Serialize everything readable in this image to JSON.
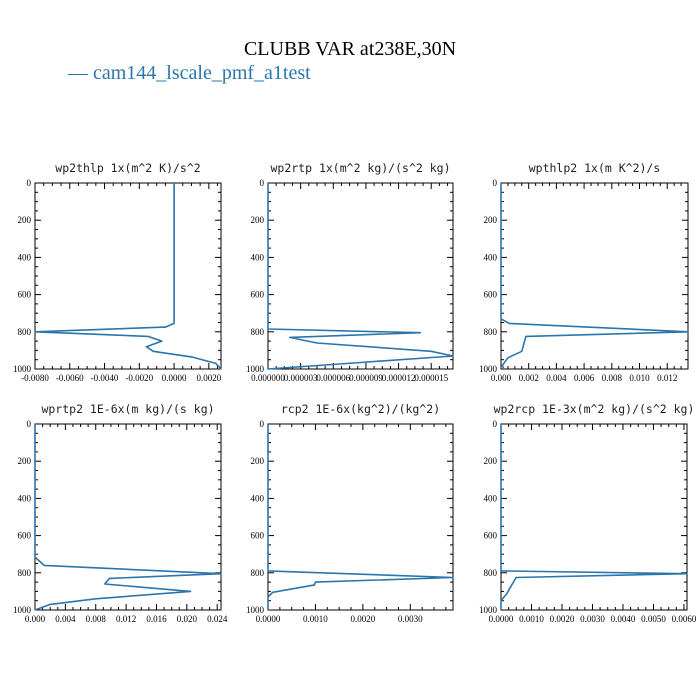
{
  "figure": {
    "title": "CLUBB VAR at238E,30N",
    "legend_label": "— cam144_lscale_pmf_a1test",
    "line_color": "#2b75ad"
  },
  "chart_data": [
    {
      "type": "line",
      "title": "wp2thlp   1x(m^2 K)/s^2",
      "xlim": [
        -0.008,
        0.0027
      ],
      "ylim": [
        1000,
        0
      ],
      "xticks": [
        -0.008,
        -0.006,
        -0.004,
        -0.002,
        0.0,
        0.002
      ],
      "xtick_labels": [
        "-0.0080",
        "-0.0060",
        "-0.0040",
        "-0.0020",
        "0.0000",
        "0.0020"
      ],
      "yticks": [
        0,
        200,
        400,
        600,
        800,
        1000
      ],
      "series": [
        {
          "x": [
            0.0,
            0.0,
            0.0,
            -0.0005,
            -0.008,
            -0.0015,
            -0.0007,
            -0.0016,
            -0.0012,
            0.001,
            0.0024,
            0.0027
          ],
          "y": [
            0,
            200,
            755,
            775,
            800,
            825,
            850,
            880,
            905,
            935,
            970,
            1000
          ]
        }
      ]
    },
    {
      "type": "line",
      "title": "wp2rtp   1x(m^2 kg)/(s^2 kg)",
      "xlim": [
        0.0,
        1.7e-05
      ],
      "ylim": [
        1000,
        0
      ],
      "xticks": [
        0.0,
        3e-06,
        6e-06,
        9e-06,
        1.2e-05,
        1.5e-05
      ],
      "xtick_labels": [
        "0.000000",
        "0.000003",
        "0.000006",
        "0.000009",
        "0.000012",
        "0.000015"
      ],
      "yticks": [
        0,
        200,
        400,
        600,
        800,
        1000
      ],
      "series": [
        {
          "x": [
            0.0,
            0.0,
            0.0,
            0.0,
            1.4e-05,
            2e-06,
            4.5e-06,
            1.5e-05,
            1.7e-05,
            8.5e-06,
            0.0
          ],
          "y": [
            0,
            200,
            760,
            785,
            805,
            830,
            860,
            905,
            930,
            965,
            1000
          ]
        }
      ]
    },
    {
      "type": "line",
      "title": "wpthlp2   1x(m K^2)/s",
      "xlim": [
        0.0,
        0.0135
      ],
      "ylim": [
        1000,
        0
      ],
      "xticks": [
        0.0,
        0.002,
        0.004,
        0.006,
        0.008,
        0.01,
        0.012
      ],
      "xtick_labels": [
        "0.000",
        "0.002",
        "0.004",
        "0.006",
        "0.008",
        "0.010",
        "0.012"
      ],
      "yticks": [
        0,
        200,
        400,
        600,
        800,
        1000
      ],
      "series": [
        {
          "x": [
            0.0,
            0.0,
            0.0,
            0.0006,
            0.0135,
            0.0018,
            0.0015,
            0.0005,
            0.0001,
            0.0002
          ],
          "y": [
            0,
            200,
            730,
            755,
            800,
            825,
            905,
            940,
            980,
            1000
          ]
        }
      ]
    },
    {
      "type": "line",
      "title": "wprtp2   1E-6x(m kg)/(s kg)",
      "xlim": [
        0.0,
        0.0245
      ],
      "ylim": [
        1000,
        0
      ],
      "xticks": [
        0.0,
        0.004,
        0.008,
        0.012,
        0.016,
        0.02,
        0.024
      ],
      "xtick_labels": [
        "0.000",
        "0.004",
        "0.008",
        "0.012",
        "0.016",
        "0.020",
        "0.024"
      ],
      "yticks": [
        0,
        200,
        400,
        600,
        800,
        1000
      ],
      "series": [
        {
          "x": [
            0.0,
            0.0,
            0.0,
            0.0012,
            0.0245,
            0.0098,
            0.0092,
            0.0205,
            0.008,
            0.002,
            0.0
          ],
          "y": [
            0,
            200,
            715,
            760,
            805,
            830,
            860,
            900,
            940,
            970,
            1000
          ]
        }
      ]
    },
    {
      "type": "line",
      "title": "rcp2   1E-6x(kg^2)/(kg^2)",
      "xlim": [
        0.0,
        0.0039
      ],
      "ylim": [
        1000,
        0
      ],
      "xticks": [
        0.0,
        0.001,
        0.002,
        0.003
      ],
      "xtick_labels": [
        "0.0000",
        "0.0010",
        "0.0020",
        "0.0030"
      ],
      "yticks": [
        0,
        200,
        400,
        600,
        800,
        1000
      ],
      "series": [
        {
          "x": [
            0.0,
            0.0,
            0.0,
            0.0039,
            0.001,
            0.00098,
            0.0001,
            0.0,
            0.0
          ],
          "y": [
            0,
            200,
            790,
            825,
            850,
            865,
            905,
            930,
            1000
          ]
        }
      ]
    },
    {
      "type": "line",
      "title": "wp2rcp   1E-3x(m^2 kg)/(s^2 kg)",
      "xlim": [
        0.0,
        0.0061
      ],
      "ylim": [
        1000,
        0
      ],
      "xticks": [
        0.0,
        0.001,
        0.002,
        0.003,
        0.004,
        0.005,
        0.006
      ],
      "xtick_labels": [
        "0.0000",
        "0.0010",
        "0.0020",
        "0.0030",
        "0.0040",
        "0.0050",
        "0.0060"
      ],
      "yticks": [
        0,
        200,
        400,
        600,
        800,
        1000
      ],
      "series": [
        {
          "x": [
            0.0,
            0.0,
            0.0,
            0.0061,
            0.0005,
            0.0003,
            0.0002,
            0.0,
            0.0
          ],
          "y": [
            0,
            200,
            790,
            805,
            825,
            880,
            910,
            950,
            1000
          ]
        }
      ]
    }
  ]
}
